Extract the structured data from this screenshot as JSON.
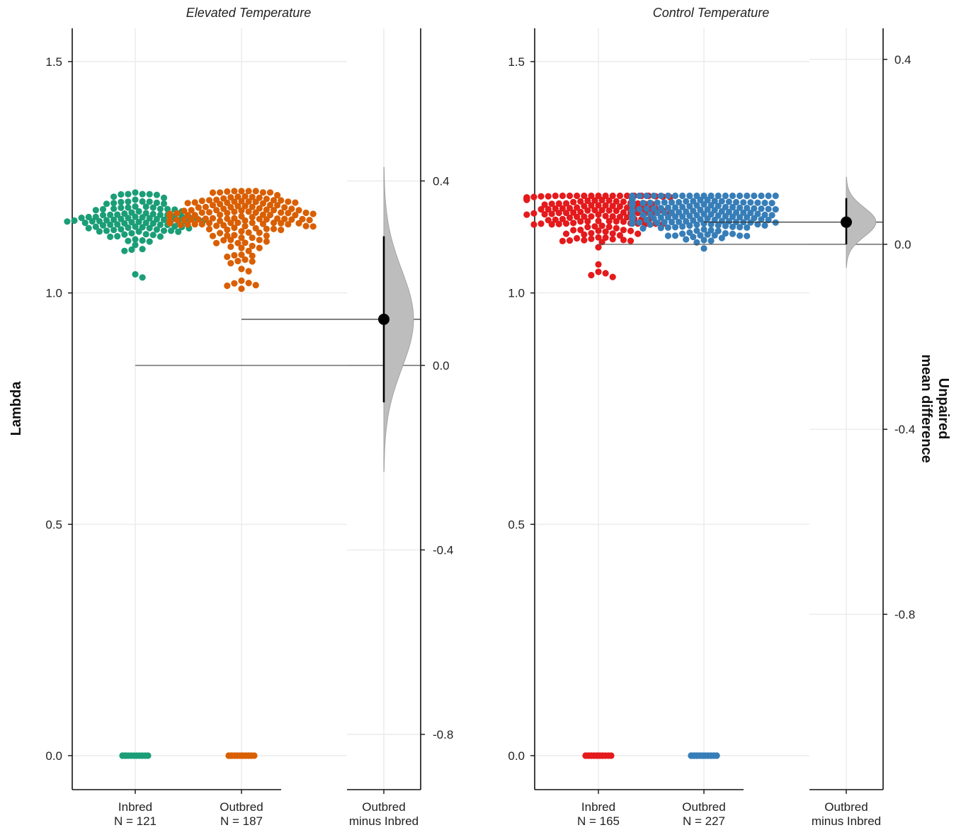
{
  "ylabel_left": "Lambda",
  "ylabel_right": [
    "Unpaired",
    "mean difference"
  ],
  "chart_data": [
    {
      "type": "scatter",
      "subtype": "estimation-plot (swarm + bootstrap mean difference)",
      "title": "Elevated Temperature",
      "ylabel": "Lambda",
      "ylim": [
        -0.15,
        1.6
      ],
      "yticks": [
        0.0,
        0.5,
        1.0,
        1.5
      ],
      "groups": [
        {
          "label": "Inbred",
          "n_label": "N = 121",
          "n": 121,
          "color": "#1b9e77",
          "swarm_range": [
            1.03,
            1.22
          ],
          "swarm_center": 1.18,
          "zeros_present": true
        },
        {
          "label": "Outbred",
          "n_label": "N = 187",
          "n": 187,
          "color": "#d95f02",
          "swarm_range": [
            1.0,
            1.22
          ],
          "swarm_center": 1.19,
          "zeros_present": true
        }
      ],
      "delta": {
        "label": [
          "Outbred",
          "minus Inbred"
        ],
        "ylabel": "Unpaired mean difference",
        "ylim": [
          -0.9,
          0.47
        ],
        "yticks": [
          -0.8,
          -0.4,
          0.0,
          0.4
        ],
        "mean": 0.1,
        "ci": [
          -0.08,
          0.28
        ],
        "density_range": [
          -0.23,
          0.43
        ],
        "reference_mean_lambda": 0.84
      },
      "grid": true
    },
    {
      "type": "scatter",
      "subtype": "estimation-plot (swarm + bootstrap mean difference)",
      "title": "Control Temperature",
      "ylabel": "Lambda",
      "ylim": [
        -0.15,
        1.6
      ],
      "yticks": [
        0.0,
        0.5,
        1.0,
        1.5
      ],
      "groups": [
        {
          "label": "Inbred",
          "n_label": "N = 165",
          "n": 165,
          "color": "#e41a1c",
          "swarm_range": [
            1.03,
            1.21
          ],
          "swarm_center": 1.19,
          "zeros_present": true
        },
        {
          "label": "Outbred",
          "n_label": "N = 227",
          "n": 227,
          "color": "#377eb8",
          "swarm_range": [
            1.09,
            1.21
          ],
          "swarm_center": 1.19,
          "zeros_present": true
        }
      ],
      "delta": {
        "label": [
          "Outbred",
          "minus Inbred"
        ],
        "ylabel": "Unpaired mean difference",
        "ylim": [
          -1.1,
          0.47
        ],
        "yticks": [
          -0.8,
          -0.4,
          0.0,
          0.4
        ],
        "mean": 0.048,
        "ci": [
          0.0,
          0.1
        ],
        "density_range": [
          -0.05,
          0.145
        ],
        "reference_mean_lambda": 1.1
      },
      "grid": true
    }
  ]
}
